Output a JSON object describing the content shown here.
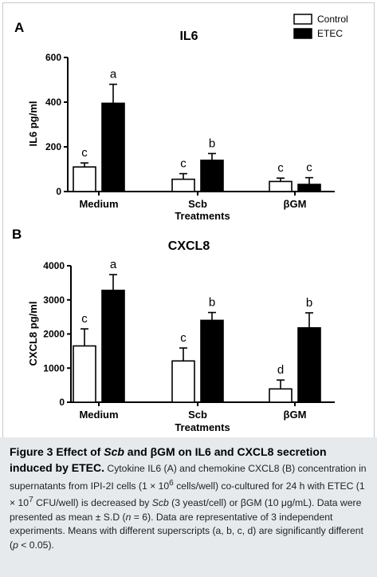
{
  "legend": [
    {
      "label": "Control",
      "fill": "#ffffff"
    },
    {
      "label": "ETEC",
      "fill": "#000000"
    }
  ],
  "colors": {
    "control": "#ffffff",
    "etec": "#000000",
    "caption_bg": "#e6eaed"
  },
  "chart_data": [
    {
      "panel": "A",
      "type": "bar",
      "title": "IL6",
      "xlabel": "Treatments",
      "ylabel": "IL6 pg/ml",
      "ylim": [
        0,
        600
      ],
      "yticks": [
        0,
        200,
        400,
        600
      ],
      "categories": [
        "Medium",
        "Scb",
        "βGM"
      ],
      "series": [
        {
          "name": "Control",
          "values": [
            110,
            55,
            45
          ],
          "errors": [
            18,
            25,
            15
          ],
          "sig": [
            "c",
            "c",
            "c"
          ]
        },
        {
          "name": "ETEC",
          "values": [
            395,
            140,
            32
          ],
          "errors": [
            85,
            30,
            30
          ],
          "sig": [
            "a",
            "b",
            "c"
          ]
        }
      ]
    },
    {
      "panel": "B",
      "type": "bar",
      "title": "CXCL8",
      "xlabel": "Treatments",
      "ylabel": "CXCL8 pg/ml",
      "ylim": [
        0,
        4000
      ],
      "yticks": [
        0,
        1000,
        2000,
        3000,
        4000
      ],
      "categories": [
        "Medium",
        "Scb",
        "βGM"
      ],
      "series": [
        {
          "name": "Control",
          "values": [
            1650,
            1210,
            390
          ],
          "errors": [
            500,
            380,
            260
          ],
          "sig": [
            "c",
            "c",
            "d"
          ]
        },
        {
          "name": "ETEC",
          "values": [
            3280,
            2400,
            2180
          ],
          "errors": [
            460,
            230,
            440
          ],
          "sig": [
            "a",
            "b",
            "b"
          ]
        }
      ]
    }
  ],
  "caption": {
    "title_start": "Figure 3 Effect of ",
    "title_scb": "Scb",
    "title_mid": " and βGM on IL6 and CXCL8 secretion induced by ETEC",
    "title_end": ".",
    "b1": " Cytokine IL6 (A) and chemokine CXCL8 (B) concentration in supernatants from IPI-2I cells (1 × 10",
    "sup1": "6",
    "b2": " cells/well) co-cultured for 24 h with ETEC (1 × 10",
    "sup2": "7",
    "b3": " CFU/well) is decreased by ",
    "scb": "Scb",
    "b4": " (3 yeast/cell) or βGM (10 μg/mL). Data were presented as mean ± S.D (",
    "n_var": "n",
    "b5": " = 6). Data are representative of 3 independent experiments. Means with different superscripts (a, b, c, d) are significantly different (",
    "p_var": "p",
    "b6": " < 0.05)."
  }
}
